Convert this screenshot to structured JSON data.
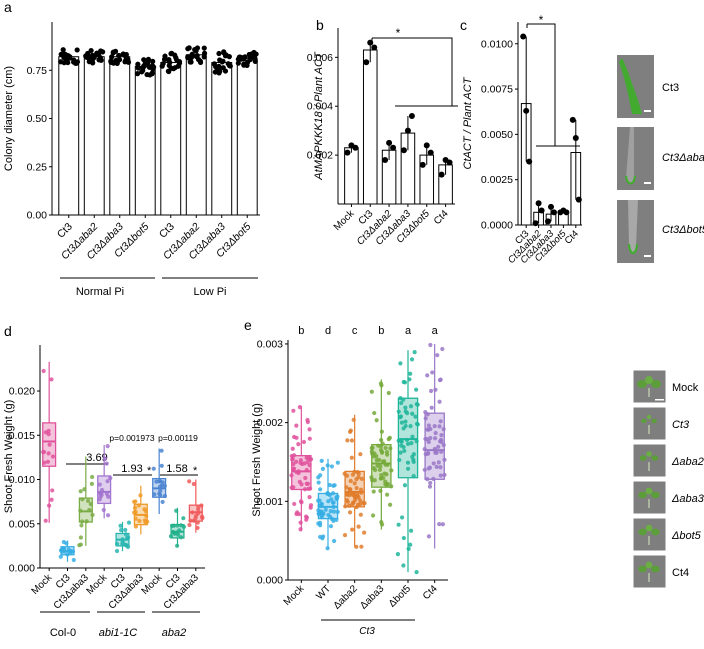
{
  "chart_data": [
    {
      "panel": "a",
      "type": "bar",
      "ylabel": "Colony diameter (cm)",
      "ylim": [
        0,
        1.0
      ],
      "yticks": [
        "0.00",
        "0.25",
        "0.50",
        "0.75"
      ],
      "ytick_values": [
        0,
        0.25,
        0.5,
        0.75
      ],
      "categories": [
        "Ct3",
        "Ct3Δaba2",
        "Ct3Δaba3",
        "Ct3Δbot5",
        "Ct3",
        "Ct3Δaba2",
        "Ct3Δaba3",
        "Ct3Δbot5"
      ],
      "values": [
        0.82,
        0.82,
        0.82,
        0.77,
        0.79,
        0.83,
        0.79,
        0.81
      ],
      "spread": [
        0.04,
        0.035,
        0.035,
        0.045,
        0.05,
        0.045,
        0.06,
        0.035
      ],
      "groups": [
        "Normal Pi",
        "Low Pi"
      ]
    },
    {
      "panel": "b",
      "type": "bar",
      "ylabel": "AtMAPKKK18 / Plant ACT",
      "ylim": [
        0,
        0.0072
      ],
      "yticks": [
        "0.002",
        "0.004",
        "0.006"
      ],
      "ytick_values": [
        0.002,
        0.004,
        0.006
      ],
      "categories": [
        "Mock",
        "Ct3",
        "Ct3Δaba2",
        "Ct3Δaba3",
        "Ct3Δbot5",
        "Ct4"
      ],
      "values": [
        0.0023,
        0.0063,
        0.0022,
        0.0029,
        0.002,
        0.0016
      ],
      "points": [
        [
          0.0021,
          0.0024,
          0.0023
        ],
        [
          0.0058,
          0.0066,
          0.0064
        ],
        [
          0.0018,
          0.0025,
          0.0023
        ],
        [
          0.0022,
          0.003,
          0.0036
        ],
        [
          0.0016,
          0.0024,
          0.0021
        ],
        [
          0.0012,
          0.0018,
          0.0017
        ]
      ],
      "significance": "*"
    },
    {
      "panel": "c",
      "type": "bar",
      "ylabel": "CtACT / Plant ACT",
      "ylim": [
        0,
        0.0112
      ],
      "yticks": [
        "0.0000",
        "0.0025",
        "0.0050",
        "0.0075",
        "0.0100"
      ],
      "ytick_values": [
        0,
        0.0025,
        0.005,
        0.0075,
        0.01
      ],
      "categories": [
        "Ct3",
        "Ct3Δaba2",
        "Ct3Δaba3",
        "Ct3Δbot5",
        "Ct4"
      ],
      "values": [
        0.0067,
        0.0007,
        0.0006,
        0.0007,
        0.004
      ],
      "points": [
        [
          0.0104,
          0.0063,
          0.0035
        ],
        [
          0.0001,
          0.0012,
          0.0008
        ],
        [
          0.0002,
          0.001,
          0.0007
        ],
        [
          0.0007,
          0.0008,
          0.0007
        ],
        [
          0.0058,
          0.0048,
          0.0014
        ]
      ],
      "significance": "*"
    },
    {
      "panel": "d",
      "type": "box",
      "ylabel": "Shoot Fresh Weight (g)",
      "ylim": [
        0,
        0.0252
      ],
      "yticks": [
        "0.000",
        "0.005",
        "0.010",
        "0.015",
        "0.020"
      ],
      "ytick_values": [
        0,
        0.005,
        0.01,
        0.015,
        0.02
      ],
      "categories": [
        "Mock",
        "Ct3",
        "Ct3Δaba3",
        "Mock",
        "Ct3",
        "Ct3Δaba3",
        "Mock",
        "Ct3",
        "Ct3Δaba3"
      ],
      "boxes": [
        {
          "q1": 0.0115,
          "med": 0.0143,
          "q3": 0.0164,
          "lo": 0.0051,
          "hi": 0.0233
        },
        {
          "q1": 0.0015,
          "med": 0.0019,
          "q3": 0.0024,
          "lo": 0.0007,
          "hi": 0.0031
        },
        {
          "q1": 0.0052,
          "med": 0.0064,
          "q3": 0.0079,
          "lo": 0.0025,
          "hi": 0.0126
        },
        {
          "q1": 0.0073,
          "med": 0.0086,
          "q3": 0.0104,
          "lo": 0.0056,
          "hi": 0.0139
        },
        {
          "q1": 0.0025,
          "med": 0.0032,
          "q3": 0.0039,
          "lo": 0.0019,
          "hi": 0.0052
        },
        {
          "q1": 0.0049,
          "med": 0.006,
          "q3": 0.0072,
          "lo": 0.0038,
          "hi": 0.0093
        },
        {
          "q1": 0.008,
          "med": 0.009,
          "q3": 0.0101,
          "lo": 0.0061,
          "hi": 0.0135
        },
        {
          "q1": 0.0034,
          "med": 0.0041,
          "q3": 0.0049,
          "lo": 0.0024,
          "hi": 0.0068
        },
        {
          "q1": 0.0053,
          "med": 0.0063,
          "q3": 0.0071,
          "lo": 0.004,
          "hi": 0.01
        }
      ],
      "colors": [
        "#e0529c",
        "#36aee4",
        "#7aab45",
        "#a374cf",
        "#29b5b0",
        "#ef9a27",
        "#4a84d1",
        "#22b08b",
        "#f05a5a"
      ],
      "groups": [
        "Col-0",
        "abi1-1C",
        "aba2"
      ],
      "annotations": [
        "3.69",
        "1.93",
        "*",
        "1.58",
        "*",
        "p=0.001973",
        "p=0.00119"
      ]
    },
    {
      "panel": "e",
      "type": "box",
      "ylabel": "Shoot Fresh Weight (g)",
      "ylim": [
        0,
        0.00305
      ],
      "yticks": [
        "0.000",
        "0.001",
        "0.002",
        "0.003"
      ],
      "ytick_values": [
        0,
        0.001,
        0.002,
        0.003
      ],
      "categories": [
        "Mock",
        "WT",
        "Δaba2",
        "Δaba3",
        "Δbot5",
        "Ct4"
      ],
      "boxes": [
        {
          "q1": 0.00115,
          "med": 0.00138,
          "q3": 0.00158,
          "lo": 0.00062,
          "hi": 0.00221
        },
        {
          "q1": 0.00078,
          "med": 0.00093,
          "q3": 0.0011,
          "lo": 0.0004,
          "hi": 0.00154
        },
        {
          "q1": 0.00093,
          "med": 0.00112,
          "q3": 0.00138,
          "lo": 0.00042,
          "hi": 0.0021
        },
        {
          "q1": 0.00118,
          "med": 0.00148,
          "q3": 0.00172,
          "lo": 0.00064,
          "hi": 0.00255
        },
        {
          "q1": 0.0013,
          "med": 0.00179,
          "q3": 0.00231,
          "lo": 0.0001,
          "hi": 0.00292
        },
        {
          "q1": 0.00128,
          "med": 0.00165,
          "q3": 0.00212,
          "lo": 0.0004,
          "hi": 0.003
        }
      ],
      "colors": [
        "#e0529c",
        "#36aee4",
        "#e07c2c",
        "#75a93a",
        "#1fb59a",
        "#9a78c8"
      ],
      "letters": [
        "b",
        "d",
        "c",
        "b",
        "a",
        "a"
      ],
      "group": "Ct3"
    }
  ],
  "panel_labels": [
    "a",
    "b",
    "c",
    "d",
    "e"
  ],
  "a_groups": [
    "Normal Pi",
    "Low Pi"
  ],
  "star": "*",
  "c_images": [
    "Ct3",
    "Ct3Δaba3",
    "Ct3Δbot5"
  ],
  "d_groups": [
    "Col-0",
    "abi1-1C",
    "aba2"
  ],
  "d_ann": {
    "v1": "3.69",
    "v2": "1.93",
    "v3": "1.58",
    "p1": "p=0.001973",
    "p2": "p=0.00119"
  },
  "e_letters": [
    "b",
    "d",
    "c",
    "b",
    "a",
    "a"
  ],
  "e_group": "Ct3",
  "e_images": [
    "Mock",
    "Ct3",
    "Δaba2",
    "Δaba3",
    "Δbot5",
    "Ct4"
  ],
  "colors": {
    "axis": "#000000",
    "bar_fill": "#ffffff",
    "point": "#000000",
    "photo_bg": "#8a8a8a",
    "root": "#5db330"
  }
}
